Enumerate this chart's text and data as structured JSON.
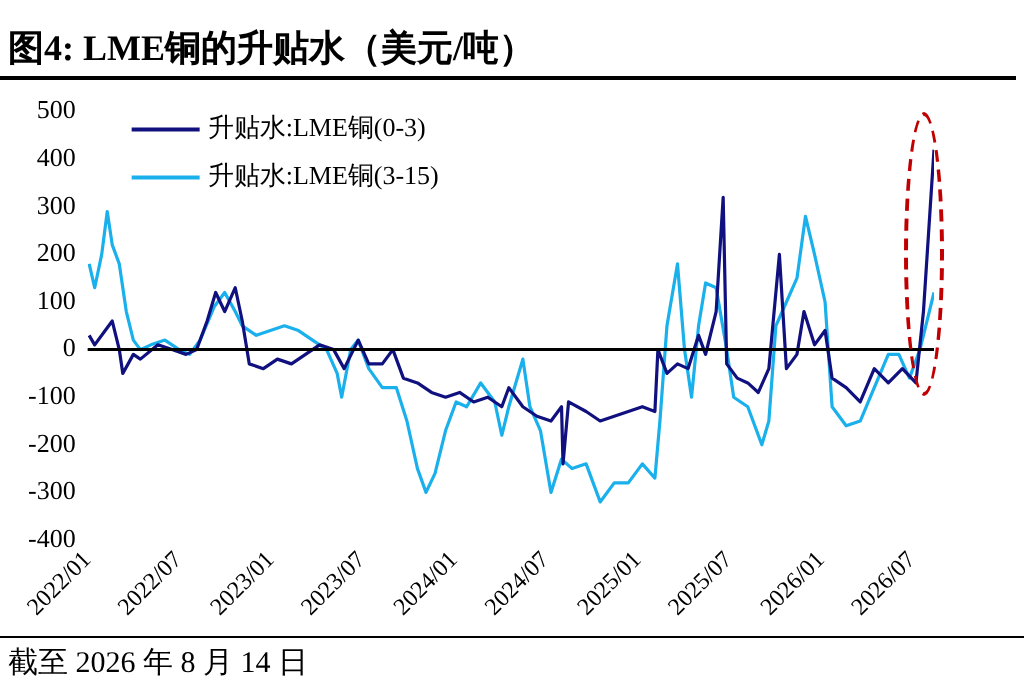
{
  "chart_data": {
    "type": "line",
    "title": "图4:  LME铜的升贴水（美元/吨）",
    "annotations": [
      "截至 2026 年 8 月 14 日"
    ],
    "series": [
      {
        "name": "升贴水:LME铜(0-3)",
        "color": "#10107f",
        "x": [
          "2022-01-04",
          "2022-01-15",
          "2022-02-05",
          "2022-02-19",
          "2022-03-05",
          "2022-03-12",
          "2022-04-02",
          "2022-04-16",
          "2022-05-21",
          "2022-06-18",
          "2022-07-16",
          "2022-08-06",
          "2022-08-27",
          "2022-09-13",
          "2022-10-01",
          "2022-10-22",
          "2022-11-05",
          "2022-11-19",
          "2022-12-17",
          "2023-01-14",
          "2023-02-11",
          "2023-03-11",
          "2023-04-08",
          "2023-05-06",
          "2023-05-27",
          "2023-06-24",
          "2023-07-15",
          "2023-08-11",
          "2023-09-01",
          "2023-09-22",
          "2023-10-20",
          "2023-11-17",
          "2023-12-15",
          "2024-01-12",
          "2024-02-09",
          "2024-03-08",
          "2024-04-05",
          "2024-04-19",
          "2024-05-17",
          "2024-06-14",
          "2024-07-12",
          "2024-08-02",
          "2024-08-05",
          "2024-08-16",
          "2024-09-20",
          "2024-10-18",
          "2024-11-15",
          "2024-12-13",
          "2025-01-10",
          "2025-02-04",
          "2025-02-10",
          "2025-02-28",
          "2025-03-21",
          "2025-04-11",
          "2025-05-02",
          "2025-05-16",
          "2025-06-06",
          "2025-06-20",
          "2025-06-27",
          "2025-07-18",
          "2025-08-08",
          "2025-08-29",
          "2025-09-19",
          "2025-10-10",
          "2025-10-24",
          "2025-11-14",
          "2025-11-28",
          "2025-12-19",
          "2026-01-09",
          "2026-01-23",
          "2026-02-20",
          "2026-03-20",
          "2026-04-17",
          "2026-05-15",
          "2026-06-12",
          "2026-07-09",
          "2026-07-24",
          "2026-08-14"
        ],
        "values": [
          30,
          10,
          40,
          60,
          0,
          -50,
          -10,
          -20,
          10,
          0,
          -10,
          0,
          60,
          120,
          80,
          130,
          60,
          -30,
          -40,
          -20,
          -30,
          -10,
          10,
          0,
          -40,
          20,
          -30,
          -30,
          0,
          -60,
          -70,
          -90,
          -100,
          -90,
          -110,
          -100,
          -120,
          -80,
          -120,
          -140,
          -150,
          -120,
          -240,
          -110,
          -130,
          -150,
          -140,
          -130,
          -120,
          -130,
          0,
          -50,
          -30,
          -40,
          30,
          -10,
          80,
          320,
          -30,
          -60,
          -70,
          -90,
          -40,
          200,
          -40,
          -10,
          80,
          10,
          40,
          -60,
          -80,
          -110,
          -40,
          -70,
          -40,
          -70,
          80,
          420
        ]
      },
      {
        "name": "升贴水:LME铜(3-15)",
        "color": "#1ab0ec",
        "x": [
          "2022-01-04",
          "2022-01-15",
          "2022-01-29",
          "2022-02-09",
          "2022-02-19",
          "2022-03-05",
          "2022-03-19",
          "2022-04-02",
          "2022-04-16",
          "2022-05-07",
          "2022-06-04",
          "2022-07-02",
          "2022-07-23",
          "2022-08-13",
          "2022-09-10",
          "2022-10-01",
          "2022-10-22",
          "2022-11-05",
          "2022-12-03",
          "2022-12-31",
          "2023-01-28",
          "2023-02-25",
          "2023-03-25",
          "2023-04-22",
          "2023-05-13",
          "2023-05-22",
          "2023-06-09",
          "2023-06-24",
          "2023-07-15",
          "2023-08-11",
          "2023-09-08",
          "2023-09-29",
          "2023-10-20",
          "2023-11-06",
          "2023-11-24",
          "2023-12-15",
          "2024-01-05",
          "2024-01-26",
          "2024-02-23",
          "2024-03-22",
          "2024-04-05",
          "2024-04-19",
          "2024-05-17",
          "2024-05-31",
          "2024-06-21",
          "2024-07-12",
          "2024-08-02",
          "2024-08-23",
          "2024-09-20",
          "2024-10-18",
          "2024-11-15",
          "2024-12-13",
          "2025-01-10",
          "2025-02-04",
          "2025-02-14",
          "2025-02-28",
          "2025-03-21",
          "2025-04-04",
          "2025-04-18",
          "2025-05-02",
          "2025-05-16",
          "2025-06-06",
          "2025-06-27",
          "2025-07-11",
          "2025-08-08",
          "2025-09-05",
          "2025-09-19",
          "2025-10-03",
          "2025-10-24",
          "2025-11-14",
          "2025-12-01",
          "2025-12-19",
          "2026-01-09",
          "2026-01-23",
          "2026-02-20",
          "2026-03-20",
          "2026-04-17",
          "2026-05-15",
          "2026-06-05",
          "2026-06-26",
          "2026-07-17",
          "2026-08-14"
        ],
        "values": [
          180,
          130,
          200,
          290,
          220,
          180,
          80,
          20,
          0,
          10,
          20,
          0,
          -10,
          20,
          90,
          120,
          80,
          50,
          30,
          40,
          50,
          40,
          20,
          0,
          -50,
          -100,
          0,
          20,
          -40,
          -80,
          -80,
          -150,
          -250,
          -300,
          -260,
          -170,
          -110,
          -120,
          -70,
          -110,
          -180,
          -120,
          -20,
          -120,
          -170,
          -300,
          -230,
          -250,
          -240,
          -320,
          -280,
          -280,
          -240,
          -270,
          -150,
          50,
          180,
          0,
          -100,
          50,
          140,
          130,
          0,
          -100,
          -120,
          -200,
          -150,
          50,
          100,
          150,
          280,
          200,
          100,
          -120,
          -160,
          -150,
          -80,
          -10,
          -10,
          -60,
          0,
          120
        ]
      }
    ],
    "xlim": [
      "2022-01-01",
      "2026-08-14"
    ],
    "xticks": [
      {
        "value": "2022-01-01",
        "label": "2022/01"
      },
      {
        "value": "2022-07-01",
        "label": "2022/07"
      },
      {
        "value": "2023-01-01",
        "label": "2023/01"
      },
      {
        "value": "2023-07-01",
        "label": "2023/07"
      },
      {
        "value": "2024-01-01",
        "label": "2024/01"
      },
      {
        "value": "2024-07-01",
        "label": "2024/07"
      },
      {
        "value": "2025-01-01",
        "label": "2025/01"
      },
      {
        "value": "2025-07-01",
        "label": "2025/07"
      },
      {
        "value": "2026-01-01",
        "label": "2026/01"
      },
      {
        "value": "2026-07-01",
        "label": "2026/07"
      }
    ],
    "ylim": [
      -400,
      500
    ],
    "yticks": [
      -400,
      -300,
      -200,
      -100,
      0,
      100,
      200,
      300,
      400,
      500
    ],
    "ref_lines": [
      {
        "axis": "y",
        "value": 0,
        "color": "#000000"
      }
    ],
    "legend": "top left",
    "grid": false,
    "marker": "none",
    "line_style": "solid"
  }
}
